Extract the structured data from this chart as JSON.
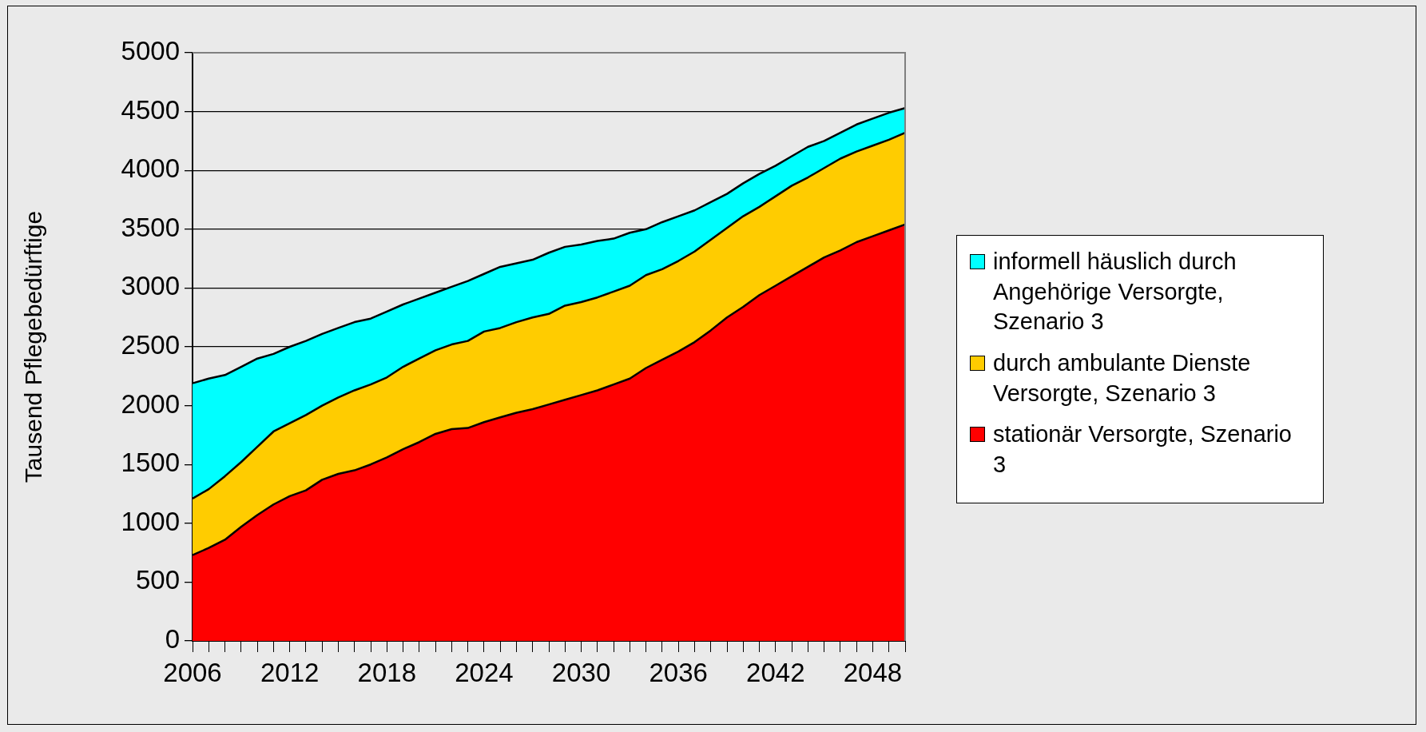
{
  "chart_data": {
    "type": "area",
    "stacked": true,
    "ylabel": "Tausend Pflegebedürftige",
    "categories": [
      "2006",
      null,
      null,
      null,
      null,
      null,
      "2012",
      null,
      null,
      null,
      null,
      null,
      "2018",
      null,
      null,
      null,
      null,
      null,
      "2024",
      null,
      null,
      null,
      null,
      null,
      "2030",
      null,
      null,
      null,
      null,
      null,
      "2036",
      null,
      null,
      null,
      null,
      null,
      "2042",
      null,
      null,
      null,
      null,
      null,
      "2048",
      null,
      null
    ],
    "series": [
      {
        "name": "stationär Versorgte, Szenario 3",
        "color": "#ff0000",
        "values": [
          730,
          790,
          860,
          970,
          1070,
          1160,
          1230,
          1280,
          1370,
          1420,
          1450,
          1500,
          1560,
          1630,
          1690,
          1760,
          1800,
          1810,
          1860,
          1900,
          1940,
          1970,
          2010,
          2050,
          2090,
          2130,
          2180,
          2230,
          2320,
          2390,
          2460,
          2540,
          2640,
          2750,
          2840,
          2940,
          3020,
          3100,
          3180,
          3260,
          3320,
          3390,
          3440,
          3490,
          3540
        ]
      },
      {
        "name": "durch ambulante Dienste Versorgte, Szenario 3",
        "color": "#ffcc00",
        "values": [
          480,
          500,
          540,
          550,
          580,
          620,
          620,
          640,
          630,
          650,
          680,
          680,
          680,
          700,
          710,
          710,
          720,
          740,
          770,
          760,
          770,
          780,
          770,
          800,
          790,
          790,
          790,
          790,
          790,
          770,
          770,
          770,
          770,
          760,
          770,
          750,
          760,
          770,
          760,
          760,
          780,
          770,
          770,
          770,
          780
        ]
      },
      {
        "name": "informell häuslich durch Angehörige Versorgte, Szenario 3",
        "color": "#00ffff",
        "values": [
          980,
          940,
          860,
          810,
          750,
          660,
          650,
          630,
          610,
          590,
          580,
          560,
          560,
          530,
          510,
          490,
          490,
          510,
          490,
          520,
          500,
          490,
          520,
          500,
          490,
          480,
          450,
          450,
          390,
          400,
          380,
          350,
          320,
          290,
          280,
          280,
          260,
          250,
          260,
          230,
          220,
          230,
          230,
          230,
          210
        ]
      }
    ],
    "ylim": [
      0,
      5000
    ],
    "yticks": [
      0,
      500,
      1000,
      1500,
      2000,
      2500,
      3000,
      3500,
      4000,
      4500,
      5000
    ],
    "grid": "y",
    "legend": "right",
    "marker": "none",
    "line_style": "solid"
  }
}
